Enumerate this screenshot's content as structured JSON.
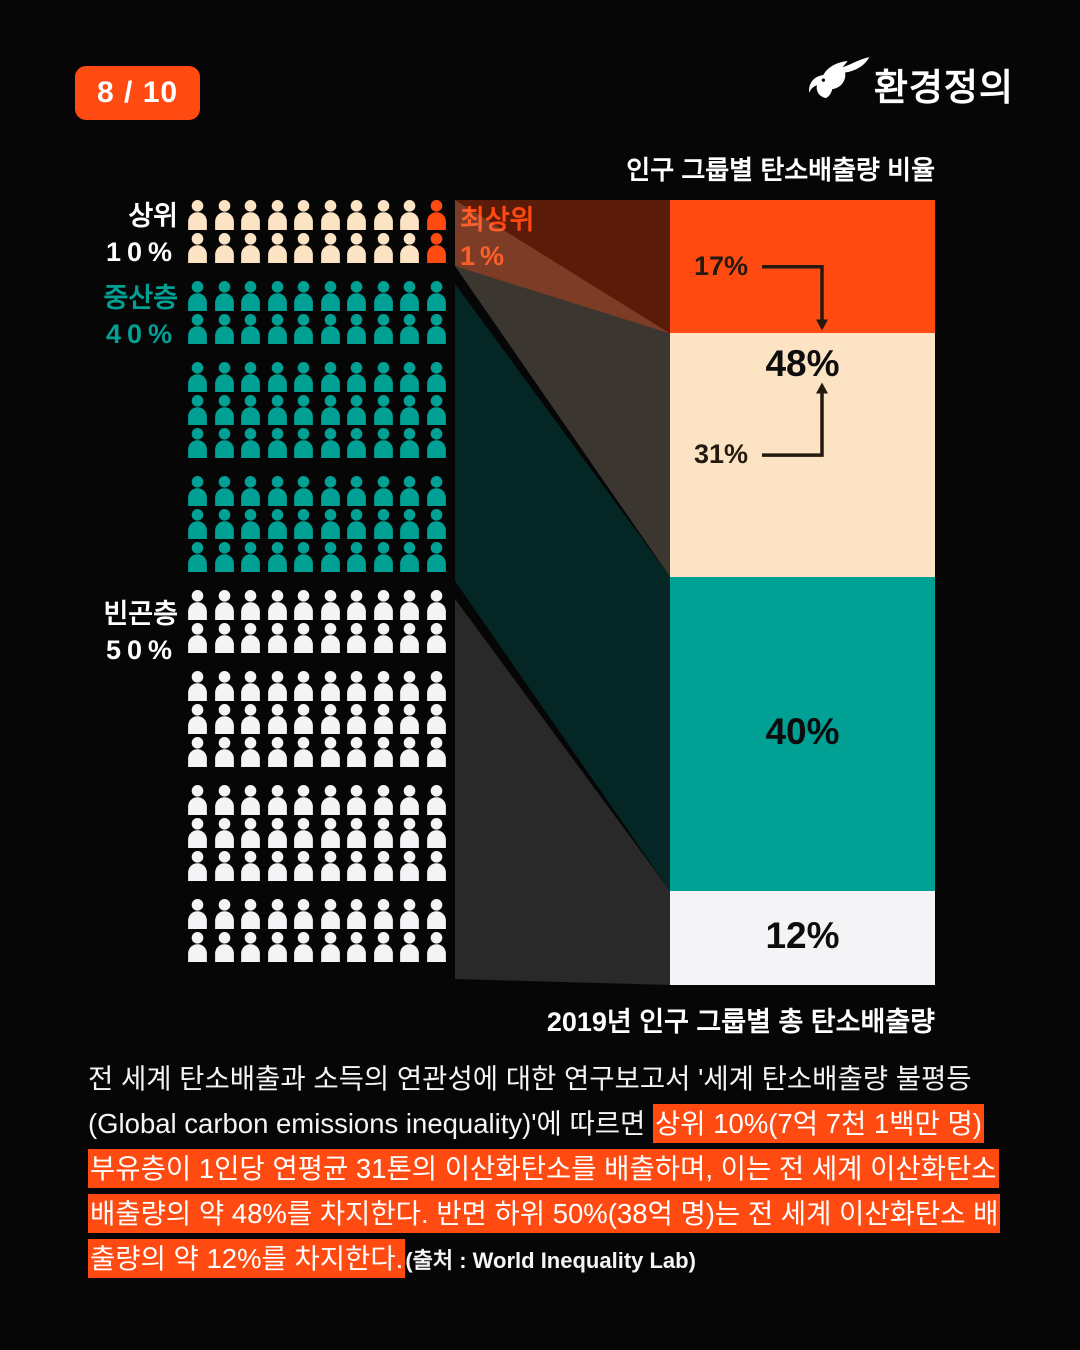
{
  "header": {
    "badge": "8 / 10",
    "logo_text": "환경정의"
  },
  "colors": {
    "background": "#060606",
    "orange": "#ff4a12",
    "cream": "#fbe3c3",
    "teal": "#00a095",
    "white_seg": "#f4f4f6",
    "label_dark": "#241a10",
    "band_orange": "rgba(255,74,18,0.34)",
    "band_cream": "rgba(251,227,195,0.22)",
    "band_teal": "rgba(0,160,149,0.22)",
    "band_gray": "rgba(244,244,246,0.15)"
  },
  "chart_data": {
    "type": "bar",
    "stacked": true,
    "unit": "%",
    "title_top": "인구 그룹별 탄소배출량 비율",
    "title_bottom": "2019년 인구 그룹별 총 탄소배출량",
    "categories": [
      "최상위 1%",
      "상위 10%",
      "중산층 40%",
      "빈곤층 50%"
    ],
    "values": [
      17,
      31,
      40,
      12
    ],
    "segments": [
      {
        "name": "최상위 1%",
        "value": 17,
        "color": "orange",
        "side_label": "17%",
        "arrow": "down"
      },
      {
        "name": "상위 10%",
        "value": 31,
        "color": "cream",
        "side_label": "31%",
        "arrow": "up",
        "sum_label": "48%"
      },
      {
        "name": "중산층 40%",
        "value": 40,
        "color": "teal",
        "center_label": "40%"
      },
      {
        "name": "빈곤층 50%",
        "value": 12,
        "color": "white_seg",
        "center_label": "12%"
      }
    ]
  },
  "pictogram": {
    "icons_per_row": 10,
    "total_icons": 200,
    "blocks": [
      {
        "color": "cream",
        "rows": 2,
        "last_column_color": "orange"
      },
      {
        "color": "teal",
        "rows": 2
      },
      {
        "color": "teal",
        "rows": 3
      },
      {
        "color": "teal",
        "rows": 3
      },
      {
        "color": "white_seg",
        "rows": 2
      },
      {
        "color": "white_seg",
        "rows": 3
      },
      {
        "color": "white_seg",
        "rows": 3
      },
      {
        "color": "white_seg",
        "rows": 2
      }
    ],
    "labels": {
      "top10": {
        "name": "상위",
        "pct": "10%"
      },
      "middle40": {
        "name": "중산층",
        "pct": "40%"
      },
      "bottom50": {
        "name": "빈곤층",
        "pct": "50%"
      },
      "elite1": {
        "name": "최상위",
        "pct": "1%"
      }
    }
  },
  "paragraph": {
    "segments": [
      {
        "text": "전 세계 탄소배출과 소득의 연관성에 대한 연구보고서 '세계 탄소배출량 불평등(Global carbon emissions inequality)'에 따르면 ",
        "highlight": false
      },
      {
        "text": "상위 10%(7억 7천 1백만 명) 부유층이 1인당 연평균 31톤의 이산화탄소를 배출하며, 이는 전 세계 이산화탄소 배출량의 약 48%를 차지한다. 반면 하위 50%(38억 명)는 전 세계 이산화탄소 배출량의 약 12%를 차지한다.",
        "highlight": true
      },
      {
        "text": "(출처 : World Inequality Lab)",
        "highlight": false,
        "small": true
      }
    ]
  }
}
